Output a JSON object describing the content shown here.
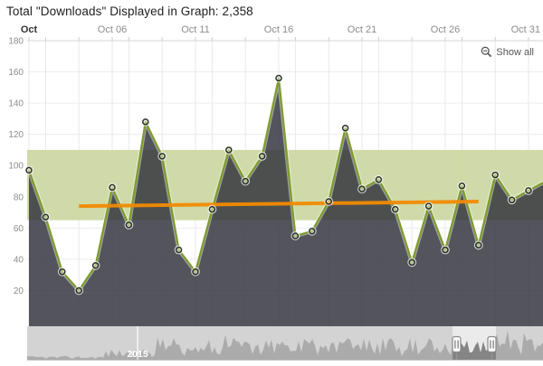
{
  "title": "Total \"Downloads\" Displayed in Graph: 2,358",
  "toolbar": {
    "show_all_label": "Show all"
  },
  "navigator": {
    "year_label": "2015"
  },
  "chart_data": {
    "type": "area",
    "title": "Total \"Downloads\" Displayed in Graph: 2,358",
    "series_name": "Downloads",
    "total_downloads": 2358,
    "x_axis": {
      "month": "Oct",
      "days": [
        1,
        2,
        3,
        4,
        5,
        6,
        7,
        8,
        9,
        10,
        11,
        12,
        13,
        14,
        15,
        16,
        17,
        18,
        19,
        20,
        21,
        22,
        23,
        24,
        25,
        26,
        27,
        28,
        29,
        30,
        31
      ],
      "tick_labels": [
        "Oct",
        "Oct 06",
        "Oct 11",
        "Oct 16",
        "Oct 21",
        "Oct 26",
        "Oct 31"
      ],
      "tick_days": [
        1,
        6,
        11,
        16,
        21,
        26,
        31
      ],
      "grid_days": [
        1,
        2,
        4,
        6,
        7,
        9,
        11,
        12,
        14,
        16,
        17,
        19,
        21,
        22,
        24,
        26,
        27,
        29,
        31
      ]
    },
    "y_axis": {
      "min": 0,
      "max": 180,
      "tick_step": 20,
      "ticks": [
        20,
        40,
        60,
        80,
        100,
        120,
        140,
        160,
        180
      ]
    },
    "values": [
      97,
      67,
      32,
      20,
      36,
      86,
      62,
      128,
      106,
      46,
      32,
      72,
      110,
      90,
      106,
      156,
      55,
      58,
      77,
      124,
      85,
      91,
      72,
      38,
      74,
      46,
      87,
      49,
      94,
      78,
      84
    ],
    "plot_band": {
      "from": 65,
      "to": 110,
      "color": "#ccd8a3"
    },
    "trend_line": {
      "from_day": 4,
      "from_value": 74,
      "to_day": 28,
      "to_value": 77,
      "color": "#f28b02"
    },
    "colors": {
      "line": "#7d9c2b",
      "area_fill": "#363640",
      "band": "#ccd8a3",
      "trend": "#f28b02",
      "grid": "#e9e9e9",
      "axis_label": "#8c8c8c",
      "first_label": "#333333"
    },
    "grid": true,
    "legend": "none"
  }
}
